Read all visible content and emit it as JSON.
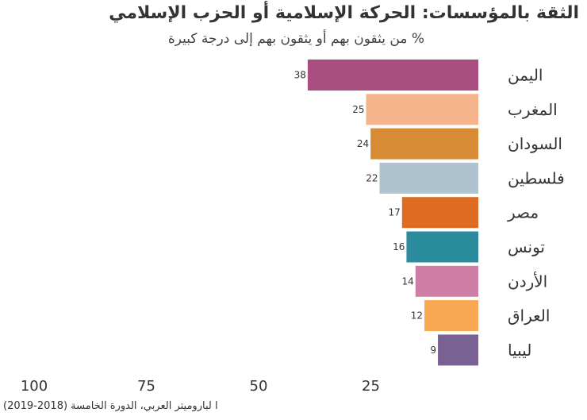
{
  "title": "الثقة بالمؤسسات: الحركة الإسلامية أو الحزب الإسلامي",
  "subtitle": "% من يثقون بهم أو يثقون بهم  إلى درجة كبيرة",
  "source": "ا لباروميتر العربي، الدورة الخامسة (2018-2019)",
  "chart_data": {
    "type": "bar",
    "orientation": "horizontal",
    "direction": "right-to-left",
    "title": "الثقة بالمؤسسات: الحركة الإسلامية أو الحزب الإسلامي",
    "subtitle": "% من يثقون بهم أو يثقون بهم  إلى درجة كبيرة",
    "categories": [
      "اليمن",
      "المغرب",
      "السودان",
      "فلسطين",
      "مصر",
      "تونس",
      "الأردن",
      "العراق",
      "ليبيا"
    ],
    "values": [
      38,
      25,
      24,
      22,
      17,
      16,
      14,
      12,
      9
    ],
    "colors": [
      "#a94e7e",
      "#f5b38c",
      "#d88b35",
      "#aec2cf",
      "#de6c23",
      "#2b8c9d",
      "#cf7fa5",
      "#f9a953",
      "#7a6193"
    ],
    "xlim": [
      0,
      100
    ],
    "xticks": [
      100,
      75,
      50,
      25
    ],
    "xlabel": "",
    "ylabel": "",
    "grid": false,
    "legend": "none"
  }
}
